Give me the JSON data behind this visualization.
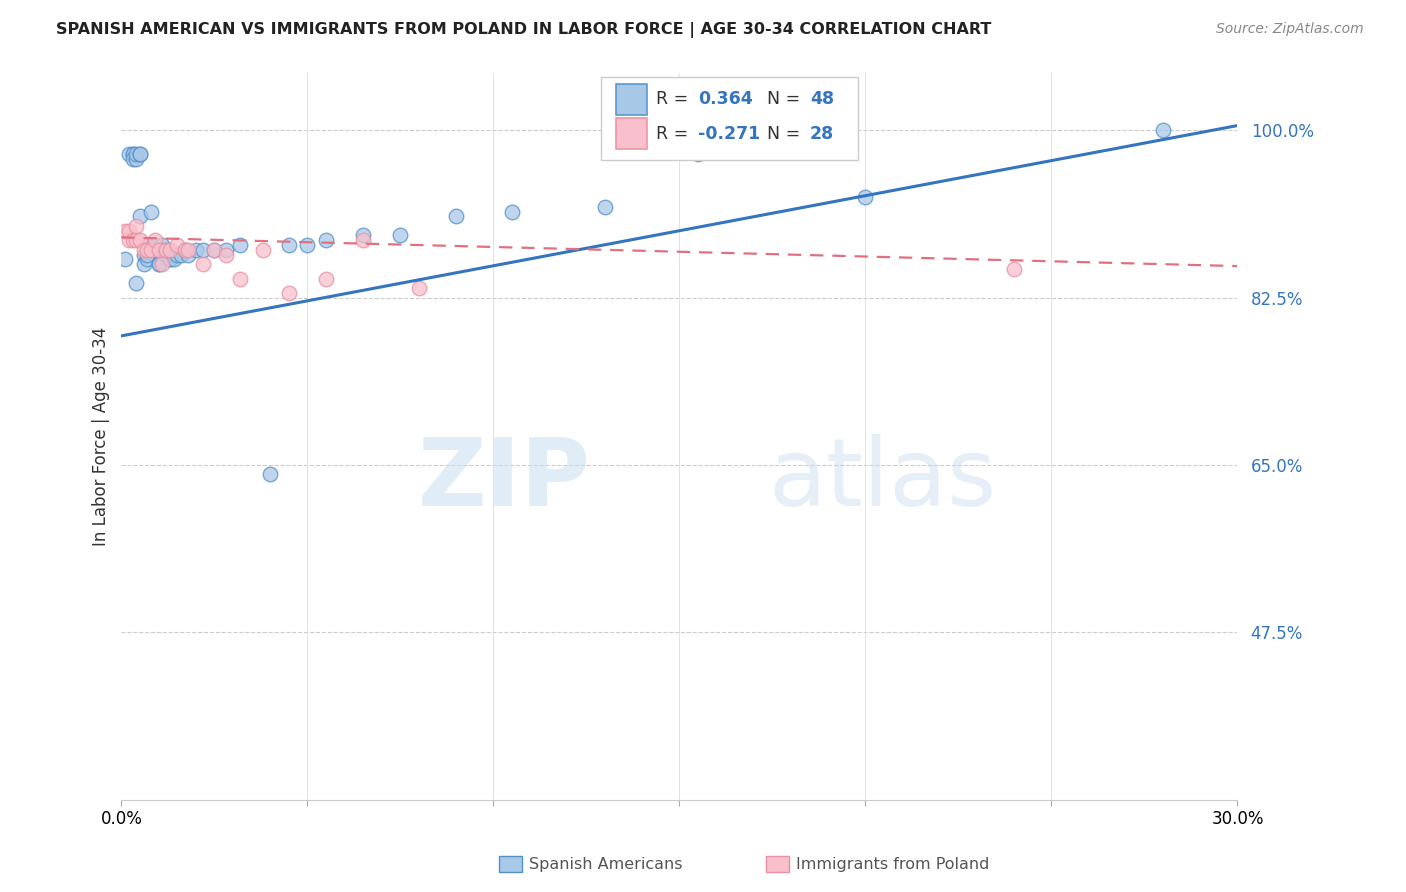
{
  "title": "SPANISH AMERICAN VS IMMIGRANTS FROM POLAND IN LABOR FORCE | AGE 30-34 CORRELATION CHART",
  "source": "Source: ZipAtlas.com",
  "ylabel": "In Labor Force | Age 30-34",
  "ytick_labels": [
    "100.0%",
    "82.5%",
    "65.0%",
    "47.5%"
  ],
  "ytick_values": [
    1.0,
    0.825,
    0.65,
    0.475
  ],
  "xmin": 0.0,
  "xmax": 0.3,
  "ymin": 0.3,
  "ymax": 1.06,
  "watermark_zip": "ZIP",
  "watermark_atlas": "atlas",
  "legend_r1_label": "R = ",
  "legend_r1_val": "0.364",
  "legend_n1_label": "  N = ",
  "legend_n1_val": "48",
  "legend_r2_label": "R = ",
  "legend_r2_val": "-0.271",
  "legend_n2_label": "  N = ",
  "legend_n2_val": "28",
  "color_blue_fill": "#a8c8e8",
  "color_blue_edge": "#5590c8",
  "color_blue_line": "#3575c0",
  "color_pink_fill": "#f8c0cc",
  "color_pink_edge": "#e890a0",
  "color_pink_line": "#e07080",
  "color_accent": "#3575c0",
  "blue_x": [
    0.001,
    0.002,
    0.003,
    0.003,
    0.003,
    0.004,
    0.004,
    0.004,
    0.005,
    0.005,
    0.005,
    0.006,
    0.006,
    0.007,
    0.007,
    0.007,
    0.008,
    0.009,
    0.009,
    0.01,
    0.01,
    0.011,
    0.012,
    0.012,
    0.013,
    0.013,
    0.014,
    0.015,
    0.016,
    0.017,
    0.018,
    0.02,
    0.022,
    0.025,
    0.028,
    0.032,
    0.04,
    0.045,
    0.05,
    0.055,
    0.065,
    0.075,
    0.09,
    0.105,
    0.13,
    0.155,
    0.2,
    0.28
  ],
  "blue_y": [
    0.865,
    0.975,
    0.975,
    0.975,
    0.97,
    0.97,
    0.975,
    0.84,
    0.975,
    0.975,
    0.91,
    0.87,
    0.86,
    0.865,
    0.88,
    0.87,
    0.915,
    0.88,
    0.875,
    0.86,
    0.86,
    0.88,
    0.875,
    0.87,
    0.865,
    0.865,
    0.865,
    0.87,
    0.87,
    0.875,
    0.87,
    0.875,
    0.875,
    0.875,
    0.875,
    0.88,
    0.64,
    0.88,
    0.88,
    0.885,
    0.89,
    0.89,
    0.91,
    0.915,
    0.92,
    0.975,
    0.93,
    1.0
  ],
  "pink_x": [
    0.001,
    0.002,
    0.002,
    0.003,
    0.004,
    0.004,
    0.005,
    0.006,
    0.007,
    0.008,
    0.009,
    0.01,
    0.011,
    0.012,
    0.013,
    0.015,
    0.017,
    0.018,
    0.022,
    0.025,
    0.028,
    0.032,
    0.038,
    0.045,
    0.055,
    0.065,
    0.08,
    0.24
  ],
  "pink_y": [
    0.895,
    0.885,
    0.895,
    0.885,
    0.885,
    0.9,
    0.885,
    0.875,
    0.875,
    0.875,
    0.885,
    0.875,
    0.86,
    0.875,
    0.875,
    0.88,
    0.875,
    0.875,
    0.86,
    0.875,
    0.87,
    0.845,
    0.875,
    0.83,
    0.845,
    0.885,
    0.835,
    0.855
  ],
  "blue_line_x0": 0.0,
  "blue_line_y0": 0.785,
  "blue_line_x1": 0.3,
  "blue_line_y1": 1.005,
  "pink_line_x0": 0.0,
  "pink_line_y0": 0.888,
  "pink_line_x1": 0.3,
  "pink_line_y1": 0.858
}
